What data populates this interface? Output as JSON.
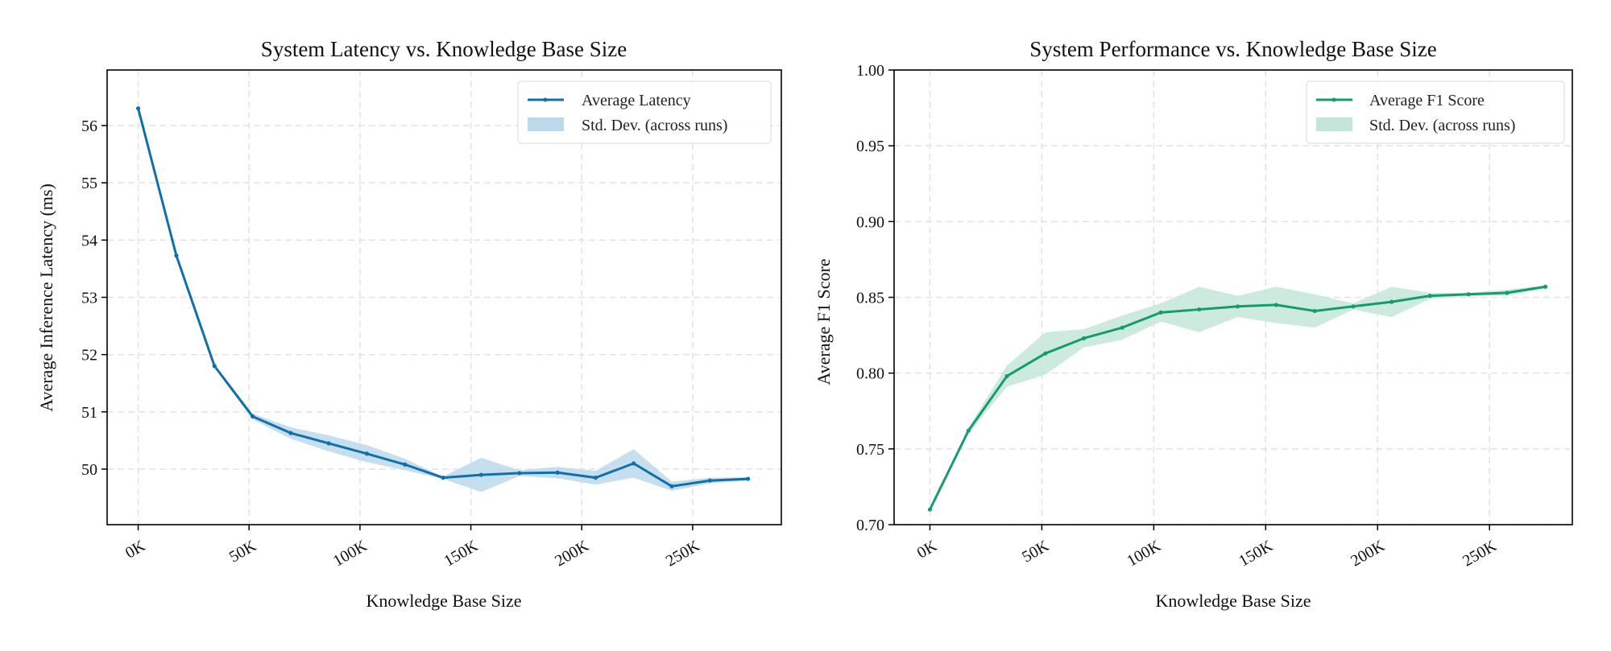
{
  "chart_data": [
    {
      "type": "line",
      "title": "System Latency vs. Knowledge Base Size",
      "xlabel": "Knowledge Base Size",
      "ylabel": "Average Inference Latency (ms)",
      "x_unit": "K",
      "x": [
        0,
        17.2,
        34.4,
        51.6,
        68.8,
        85.9,
        103.1,
        120.3,
        137.5,
        154.7,
        171.9,
        189.1,
        206.3,
        223.4,
        240.6,
        257.8,
        275
      ],
      "xticks": [
        0,
        50,
        100,
        150,
        200,
        250
      ],
      "xtick_labels": [
        "0K",
        "50K",
        "100K",
        "150K",
        "200K",
        "250K"
      ],
      "yticks": [
        50,
        51,
        52,
        53,
        54,
        55,
        56
      ],
      "ytick_labels": [
        "50",
        "51",
        "52",
        "53",
        "54",
        "55",
        "56"
      ],
      "xlim": [
        -14,
        290
      ],
      "ylim": [
        49.03,
        56.97
      ],
      "grid": true,
      "legend_position": "top-right",
      "color": "#1170aa",
      "band_color": "#bcd9ec",
      "series": [
        {
          "name": "Average Latency",
          "values": [
            56.3,
            53.73,
            51.8,
            50.92,
            50.63,
            50.45,
            50.27,
            50.08,
            49.85,
            49.9,
            49.93,
            49.94,
            49.85,
            50.1,
            49.7,
            49.8,
            49.83
          ],
          "band_name": "Std. Dev. (across runs)",
          "std": [
            0,
            0,
            0.03,
            0.05,
            0.1,
            0.14,
            0.15,
            0.1,
            0.02,
            0.3,
            0.05,
            0.1,
            0.12,
            0.25,
            0.08,
            0.05,
            0.03
          ]
        }
      ]
    },
    {
      "type": "line",
      "title": "System Performance vs. Knowledge Base Size",
      "xlabel": "Knowledge Base Size",
      "ylabel": "Average F1 Score",
      "x_unit": "K",
      "x": [
        0,
        17.2,
        34.4,
        51.6,
        68.8,
        85.9,
        103.1,
        120.3,
        137.5,
        154.7,
        171.9,
        189.1,
        206.3,
        223.4,
        240.6,
        257.8,
        275
      ],
      "xticks": [
        0,
        50,
        100,
        150,
        200,
        250
      ],
      "xtick_labels": [
        "0K",
        "50K",
        "100K",
        "150K",
        "200K",
        "250K"
      ],
      "yticks": [
        0.7,
        0.75,
        0.8,
        0.85,
        0.9,
        0.95,
        1.0
      ],
      "ytick_labels": [
        "0.70",
        "0.75",
        "0.80",
        "0.85",
        "0.90",
        "0.95",
        "1.00"
      ],
      "xlim": [
        -16,
        287
      ],
      "ylim": [
        0.7,
        1.0
      ],
      "grid": true,
      "legend_position": "top-right",
      "color": "#169b6f",
      "band_color": "#c4e6d9",
      "series": [
        {
          "name": "Average F1 Score",
          "values": [
            0.71,
            0.762,
            0.798,
            0.813,
            0.823,
            0.83,
            0.84,
            0.842,
            0.844,
            0.845,
            0.841,
            0.844,
            0.847,
            0.851,
            0.852,
            0.853,
            0.857
          ],
          "band_name": "Std. Dev. (across runs)",
          "std": [
            0,
            0.002,
            0.007,
            0.014,
            0.006,
            0.008,
            0.006,
            0.015,
            0.007,
            0.012,
            0.011,
            0.002,
            0.01,
            0.002,
            0.001,
            0.002,
            0.001
          ]
        }
      ]
    }
  ]
}
